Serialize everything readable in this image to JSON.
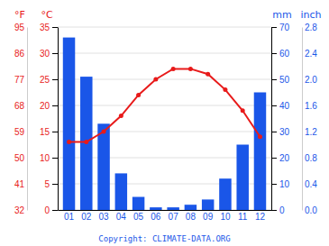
{
  "chart_data": {
    "type": "bar",
    "categories": [
      "01",
      "02",
      "03",
      "04",
      "05",
      "06",
      "07",
      "08",
      "09",
      "10",
      "11",
      "12"
    ],
    "series": [
      {
        "type": "bar",
        "color": "#1a56e8",
        "axis": "y2",
        "values": [
          66,
          51,
          33,
          14,
          5,
          1,
          1,
          2,
          4,
          12,
          25,
          45
        ]
      },
      {
        "type": "line",
        "color": "#e81a1a",
        "marker": "circle",
        "values": [
          13,
          13,
          15,
          18,
          22,
          25,
          27,
          27,
          26,
          23,
          19,
          14
        ]
      }
    ],
    "y_label": "°C",
    "ylim": [
      0,
      35
    ],
    "yticks": [
      0,
      5,
      10,
      15,
      20,
      25,
      30,
      35
    ],
    "y2_label": "mm",
    "y2lim": [
      0,
      70
    ],
    "y2ticks": [
      0,
      10,
      20,
      30,
      40,
      50,
      60,
      70
    ],
    "y3_label": "°F",
    "y3ticks": [
      {
        "value": 0,
        "label": "32"
      },
      {
        "value": 5,
        "label": "41"
      },
      {
        "value": 10,
        "label": "50"
      },
      {
        "value": 15,
        "label": "59"
      },
      {
        "value": 20,
        "label": "68"
      },
      {
        "value": 25,
        "label": "77"
      },
      {
        "value": 30,
        "label": "86"
      },
      {
        "value": 35,
        "label": "95"
      }
    ],
    "y4_label": "inch",
    "y4lim": [
      0,
      2.8
    ],
    "y4ticks": [
      {
        "value": 0.0,
        "label": "0.0"
      },
      0.4,
      0.8,
      1.2,
      1.6,
      {
        "value": 2.0,
        "label": "2.0"
      },
      2.4,
      2.8
    ],
    "annotation": "Copyright: CLIMATE-DATA.ORG",
    "grid": true
  }
}
